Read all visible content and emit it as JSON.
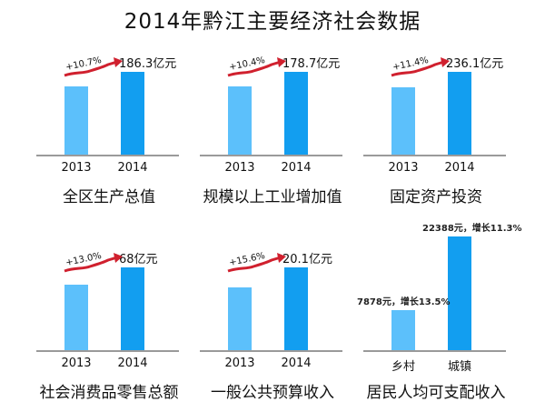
{
  "title": "2014年黔江主要经济社会数据",
  "colors": {
    "bar_2013": "#5cc0fb",
    "bar_2014": "#129ef0",
    "arrow": "#d0202e",
    "axis": "#9a9a9a"
  },
  "chart_data": [
    {
      "type": "bar",
      "title": "全区生产总值",
      "categories": [
        "2013",
        "2014"
      ],
      "value_2014": 186.3,
      "growth_pct": 10.7,
      "value_label": "186.3亿元",
      "growth_label": "+10.7%"
    },
    {
      "type": "bar",
      "title": "规模以上工业增加值",
      "categories": [
        "2013",
        "2014"
      ],
      "value_2014": 178.7,
      "growth_pct": 10.4,
      "value_label": "178.7亿元",
      "growth_label": "+10.4%"
    },
    {
      "type": "bar",
      "title": "固定资产投资",
      "categories": [
        "2013",
        "2014"
      ],
      "value_2014": 236.1,
      "growth_pct": 11.4,
      "value_label": "236.1亿元",
      "growth_label": "+11.4%"
    },
    {
      "type": "bar",
      "title": "社会消费品零售总额",
      "categories": [
        "2013",
        "2014"
      ],
      "value_2014": 68,
      "growth_pct": 13.0,
      "value_label": "68亿元",
      "growth_label": "+13.0%"
    },
    {
      "type": "bar",
      "title": "一般公共预算收入",
      "categories": [
        "2013",
        "2014"
      ],
      "value_2014": 20.1,
      "growth_pct": 15.6,
      "value_label": "20.1亿元",
      "growth_label": "+15.6%"
    },
    {
      "type": "bar",
      "title": "居民人均可支配收入",
      "categories": [
        "乡村",
        "城镇"
      ],
      "values": [
        7878,
        22388
      ],
      "growth_pct": [
        13.5,
        11.3
      ],
      "labels": [
        "7878元，增长13.5%",
        "22388元，增长11.3%"
      ]
    }
  ]
}
